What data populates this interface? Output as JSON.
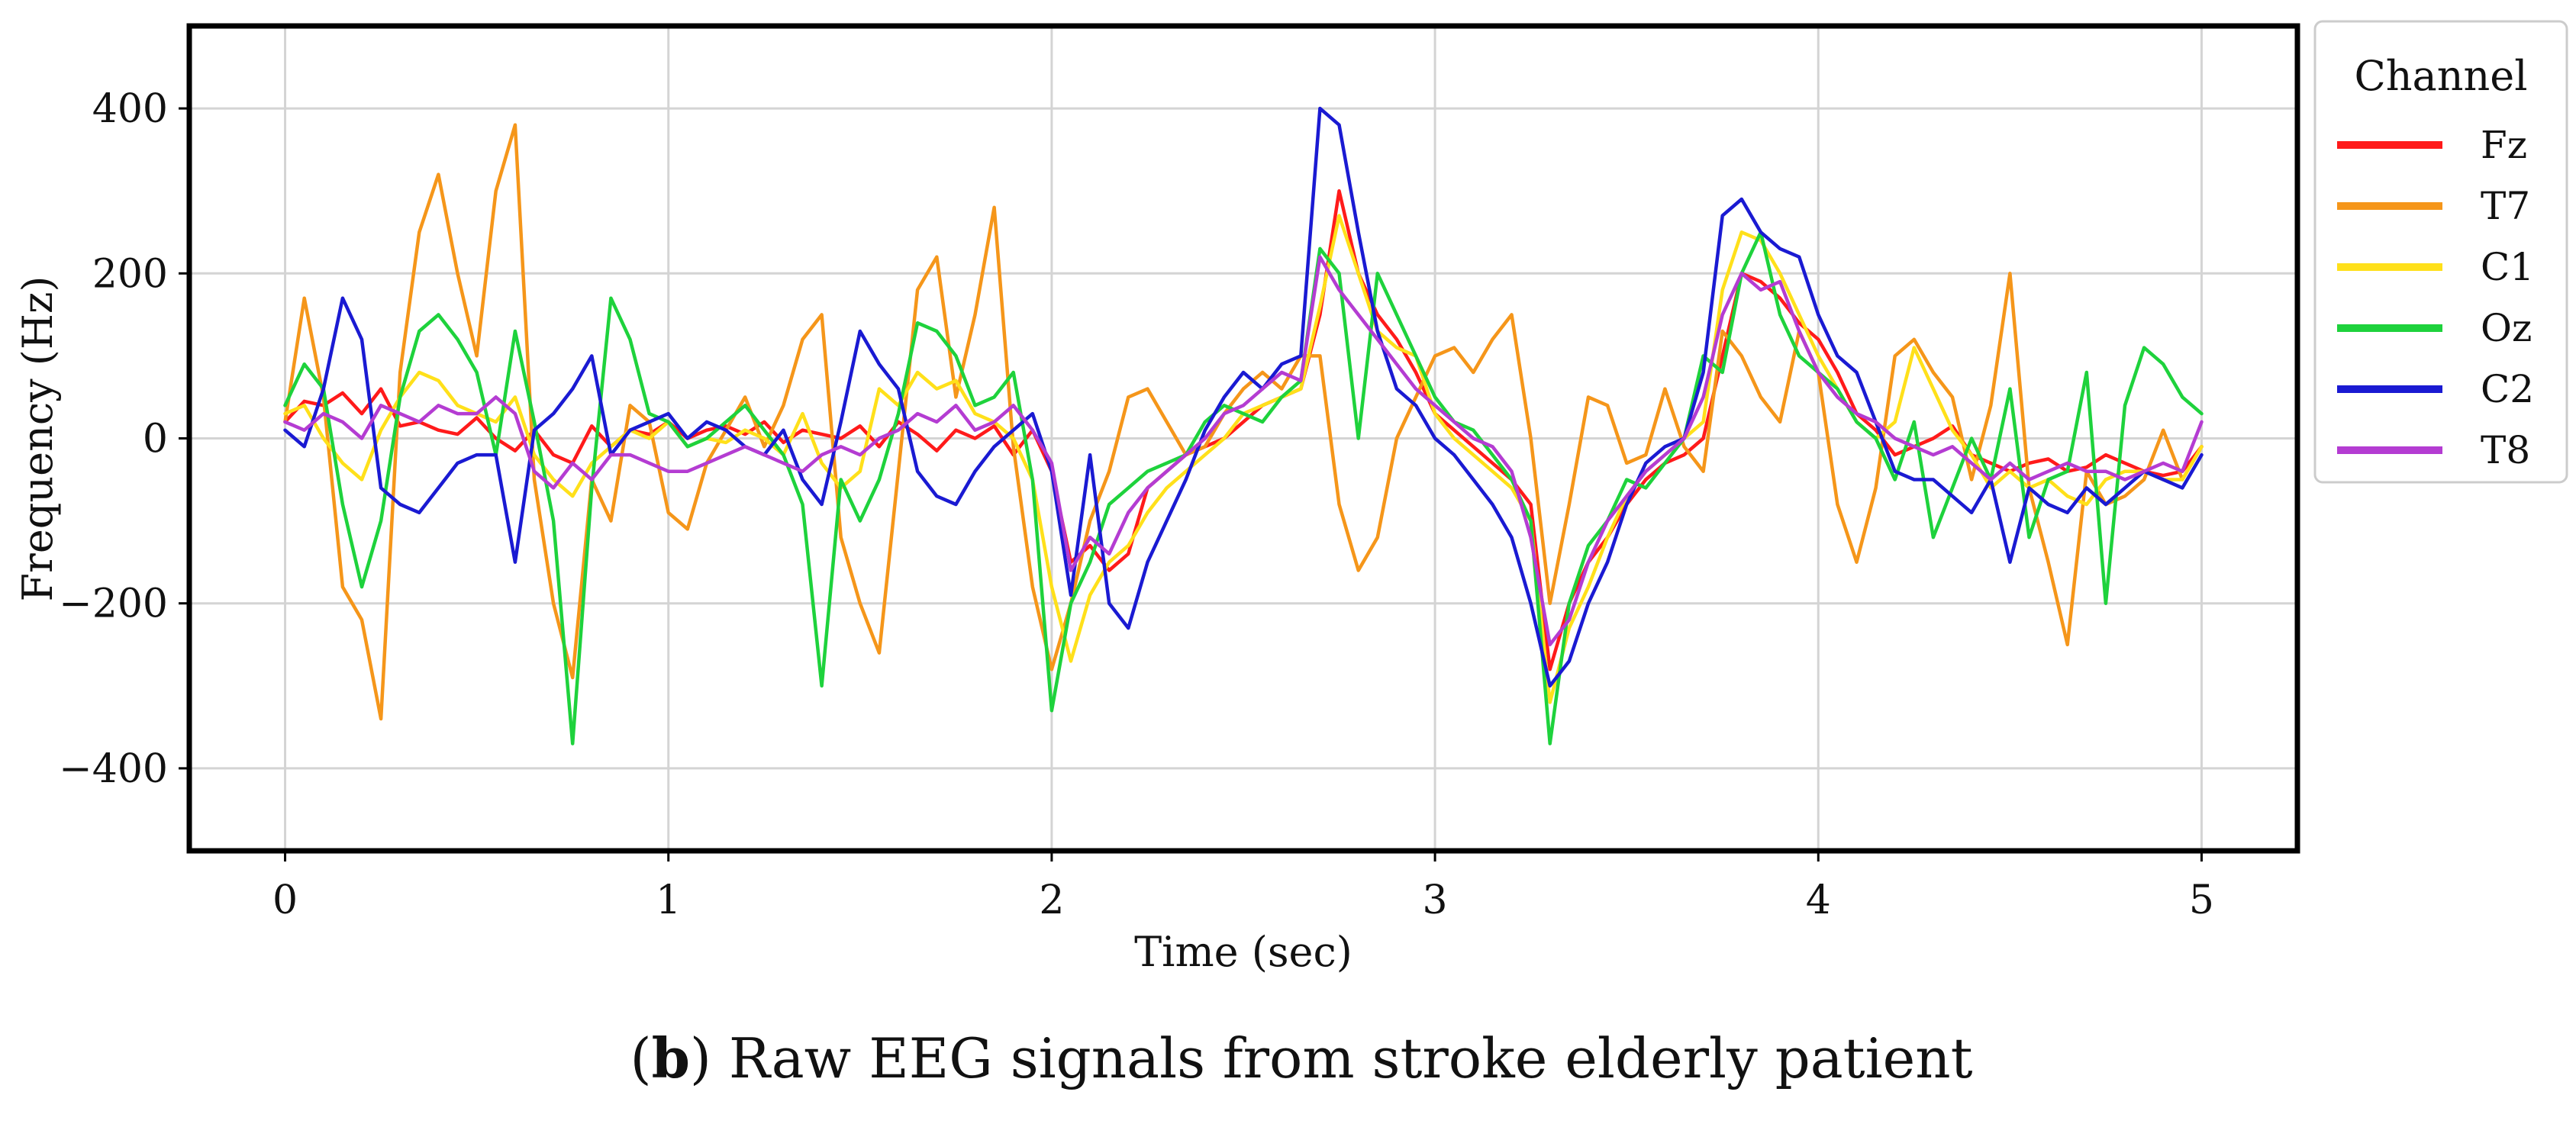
{
  "chart_data": {
    "type": "line",
    "title": "",
    "xlabel": "Time (sec)",
    "ylabel": "Frequency (Hz)",
    "xlim": [
      -0.25,
      5.25
    ],
    "ylim": [
      -500,
      500
    ],
    "xticks": [
      0,
      1,
      2,
      3,
      4,
      5
    ],
    "xtick_labels": [
      "0",
      "1",
      "2",
      "3",
      "4",
      "5"
    ],
    "yticks": [
      400,
      200,
      0,
      -200,
      -400
    ],
    "ytick_labels": [
      "400",
      "200",
      "0",
      "−200",
      "−400"
    ],
    "grid": true,
    "legend": {
      "title": "Channel",
      "position": "outside-right-top"
    },
    "x": [
      0,
      0.05,
      0.1,
      0.15,
      0.2,
      0.25,
      0.3,
      0.35,
      0.4,
      0.45,
      0.5,
      0.55,
      0.6,
      0.65,
      0.7,
      0.75,
      0.8,
      0.85,
      0.9,
      0.95,
      1.0,
      1.05,
      1.1,
      1.15,
      1.2,
      1.25,
      1.3,
      1.35,
      1.4,
      1.45,
      1.5,
      1.55,
      1.6,
      1.65,
      1.7,
      1.75,
      1.8,
      1.85,
      1.9,
      1.95,
      2.0,
      2.05,
      2.1,
      2.15,
      2.2,
      2.25,
      2.3,
      2.35,
      2.4,
      2.45,
      2.5,
      2.55,
      2.6,
      2.65,
      2.7,
      2.75,
      2.8,
      2.85,
      2.9,
      2.95,
      3.0,
      3.05,
      3.1,
      3.15,
      3.2,
      3.25,
      3.3,
      3.35,
      3.4,
      3.45,
      3.5,
      3.55,
      3.6,
      3.65,
      3.7,
      3.75,
      3.8,
      3.85,
      3.9,
      3.95,
      4.0,
      4.05,
      4.1,
      4.15,
      4.2,
      4.25,
      4.3,
      4.35,
      4.4,
      4.45,
      4.5,
      4.55,
      4.6,
      4.65,
      4.7,
      4.75,
      4.8,
      4.85,
      4.9,
      4.95,
      5.0
    ],
    "series": [
      {
        "name": "Fz",
        "color": "#ff1a1a",
        "values": [
          20,
          45,
          40,
          55,
          30,
          60,
          15,
          20,
          10,
          5,
          25,
          0,
          -15,
          10,
          -20,
          -30,
          15,
          -10,
          10,
          5,
          20,
          0,
          10,
          15,
          5,
          20,
          -5,
          10,
          5,
          0,
          15,
          -10,
          20,
          5,
          -15,
          10,
          0,
          15,
          -20,
          10,
          -40,
          -150,
          -130,
          -160,
          -140,
          -60,
          -40,
          -20,
          -10,
          0,
          20,
          40,
          50,
          60,
          150,
          300,
          200,
          150,
          120,
          80,
          30,
          10,
          -10,
          -30,
          -50,
          -80,
          -280,
          -200,
          -150,
          -120,
          -80,
          -50,
          -30,
          -20,
          0,
          100,
          200,
          190,
          170,
          140,
          120,
          80,
          30,
          10,
          -20,
          -10,
          0,
          15,
          -20,
          -30,
          -40,
          -30,
          -25,
          -40,
          -35,
          -20,
          -30,
          -40,
          -45,
          -40,
          -10
        ]
      },
      {
        "name": "T7",
        "color": "#f5961a",
        "values": [
          20,
          170,
          50,
          -180,
          -220,
          -340,
          80,
          250,
          320,
          200,
          100,
          300,
          380,
          -50,
          -200,
          -290,
          -50,
          -100,
          40,
          20,
          -90,
          -110,
          -30,
          10,
          50,
          -10,
          40,
          120,
          150,
          -120,
          -200,
          -260,
          -40,
          180,
          220,
          50,
          150,
          280,
          -10,
          -180,
          -280,
          -200,
          -100,
          -40,
          50,
          60,
          20,
          -20,
          -10,
          30,
          60,
          80,
          60,
          100,
          100,
          -80,
          -160,
          -120,
          0,
          50,
          100,
          110,
          80,
          120,
          150,
          0,
          -200,
          -80,
          50,
          40,
          -30,
          -20,
          60,
          -10,
          -40,
          130,
          100,
          50,
          20,
          130,
          80,
          -80,
          -150,
          -60,
          100,
          120,
          80,
          50,
          -50,
          40,
          200,
          -60,
          -150,
          -250,
          -40,
          -80,
          -70,
          -50,
          10,
          -50,
          -10
        ]
      },
      {
        "name": "C1",
        "color": "#ffe01a",
        "values": [
          30,
          40,
          0,
          -30,
          -50,
          10,
          50,
          80,
          70,
          40,
          30,
          20,
          50,
          -20,
          -50,
          -70,
          -30,
          -10,
          10,
          0,
          20,
          -10,
          0,
          -5,
          10,
          0,
          -20,
          30,
          -30,
          -60,
          -40,
          60,
          40,
          80,
          60,
          70,
          30,
          20,
          0,
          -50,
          -180,
          -270,
          -190,
          -150,
          -130,
          -90,
          -60,
          -40,
          -20,
          0,
          30,
          40,
          50,
          60,
          160,
          270,
          200,
          130,
          110,
          100,
          30,
          0,
          -20,
          -40,
          -60,
          -100,
          -320,
          -230,
          -180,
          -120,
          -70,
          -40,
          -20,
          0,
          20,
          180,
          250,
          240,
          200,
          150,
          100,
          60,
          20,
          0,
          20,
          110,
          60,
          10,
          -20,
          -60,
          -40,
          -60,
          -50,
          -70,
          -80,
          -50,
          -40,
          -40,
          -50,
          -50,
          -10
        ]
      },
      {
        "name": "Oz",
        "color": "#1ed23c",
        "values": [
          40,
          90,
          60,
          -80,
          -180,
          -100,
          50,
          130,
          150,
          120,
          80,
          -20,
          130,
          20,
          -100,
          -370,
          -60,
          170,
          120,
          30,
          20,
          -10,
          0,
          20,
          40,
          10,
          -20,
          -80,
          -300,
          -50,
          -100,
          -50,
          30,
          140,
          130,
          100,
          40,
          50,
          80,
          -50,
          -330,
          -200,
          -150,
          -80,
          -60,
          -40,
          -30,
          -20,
          20,
          40,
          30,
          20,
          50,
          70,
          230,
          200,
          0,
          200,
          150,
          100,
          50,
          20,
          10,
          -20,
          -50,
          -100,
          -370,
          -200,
          -130,
          -100,
          -50,
          -60,
          -30,
          0,
          100,
          80,
          200,
          250,
          150,
          100,
          80,
          60,
          20,
          0,
          -50,
          20,
          -120,
          -60,
          0,
          -50,
          60,
          -120,
          -50,
          -40,
          80,
          -200,
          40,
          110,
          90,
          50,
          30
        ]
      },
      {
        "name": "C2",
        "color": "#1a1ad2",
        "values": [
          10,
          -10,
          60,
          170,
          120,
          -60,
          -80,
          -90,
          -60,
          -30,
          -20,
          -20,
          -150,
          10,
          30,
          60,
          100,
          -20,
          10,
          20,
          30,
          0,
          20,
          10,
          -10,
          -20,
          10,
          -50,
          -80,
          20,
          130,
          90,
          60,
          -40,
          -70,
          -80,
          -40,
          -10,
          10,
          30,
          -40,
          -190,
          -20,
          -200,
          -230,
          -150,
          -100,
          -50,
          10,
          50,
          80,
          60,
          90,
          100,
          400,
          380,
          250,
          130,
          60,
          40,
          0,
          -20,
          -50,
          -80,
          -120,
          -200,
          -300,
          -270,
          -200,
          -150,
          -80,
          -30,
          -10,
          0,
          80,
          270,
          290,
          250,
          230,
          220,
          150,
          100,
          80,
          20,
          -40,
          -50,
          -50,
          -70,
          -90,
          -50,
          -150,
          -60,
          -80,
          -90,
          -60,
          -80,
          -60,
          -40,
          -50,
          -60,
          -20
        ]
      },
      {
        "name": "T8",
        "color": "#b43cd2",
        "values": [
          20,
          10,
          30,
          20,
          0,
          40,
          30,
          20,
          40,
          30,
          30,
          50,
          30,
          -40,
          -60,
          -30,
          -50,
          -20,
          -20,
          -30,
          -40,
          -40,
          -30,
          -20,
          -10,
          -20,
          -30,
          -40,
          -20,
          -10,
          -20,
          0,
          10,
          30,
          20,
          40,
          10,
          20,
          40,
          10,
          -30,
          -160,
          -120,
          -140,
          -90,
          -60,
          -40,
          -20,
          0,
          30,
          40,
          60,
          80,
          70,
          220,
          180,
          150,
          120,
          90,
          60,
          40,
          20,
          0,
          -10,
          -40,
          -120,
          -250,
          -220,
          -150,
          -100,
          -70,
          -40,
          -20,
          0,
          50,
          150,
          200,
          180,
          190,
          130,
          80,
          50,
          30,
          20,
          0,
          -10,
          -20,
          -10,
          -30,
          -50,
          -30,
          -50,
          -40,
          -30,
          -40,
          -40,
          -50,
          -40,
          -30,
          -40,
          20
        ]
      }
    ]
  },
  "caption": {
    "prefix": "(",
    "bold": "b",
    "rest": ") Raw EEG signals from stroke elderly patient"
  }
}
